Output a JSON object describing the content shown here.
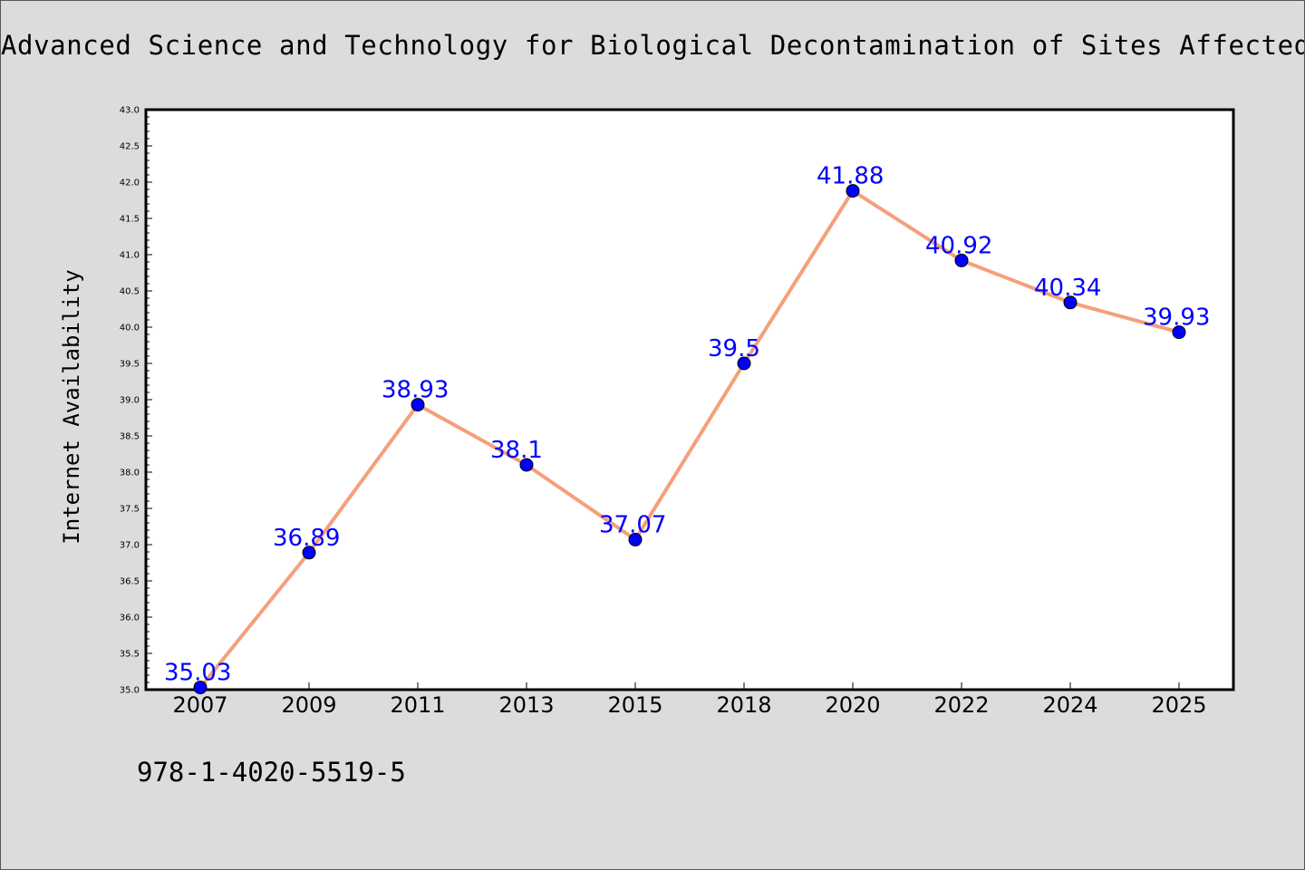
{
  "chart_data": {
    "type": "line",
    "title": "Advanced Science and Technology for Biological Decontamination of Sites Affected",
    "xlabel": "",
    "ylabel": "Internet Availability",
    "categories": [
      "2007",
      "2009",
      "2011",
      "2013",
      "2015",
      "2018",
      "2020",
      "2022",
      "2024",
      "2025"
    ],
    "series": [
      {
        "values": [
          35.03,
          36.89,
          38.93,
          38.1,
          37.07,
          39.5,
          41.88,
          40.92,
          40.34,
          39.93
        ],
        "data_labels": [
          "35.03",
          "36.89",
          "38.93",
          "38.1",
          "37.07",
          "39.5",
          "41.88",
          "40.92",
          "40.34",
          "39.93"
        ],
        "line_color": "#f4a07a",
        "marker_color": "#0000ff"
      }
    ],
    "ylim": [
      35.0,
      43.0
    ],
    "yticks": [
      "35.0",
      "35.5",
      "36.0",
      "36.5",
      "37.0",
      "37.5",
      "38.0",
      "38.5",
      "39.0",
      "39.5",
      "40.0",
      "40.5",
      "41.0",
      "41.5",
      "42.0",
      "42.5",
      "43.0"
    ],
    "grid": false,
    "legend": "none",
    "data_label_color": "#0000ff"
  },
  "footer": {
    "isbn": "978-1-4020-5519-5"
  }
}
